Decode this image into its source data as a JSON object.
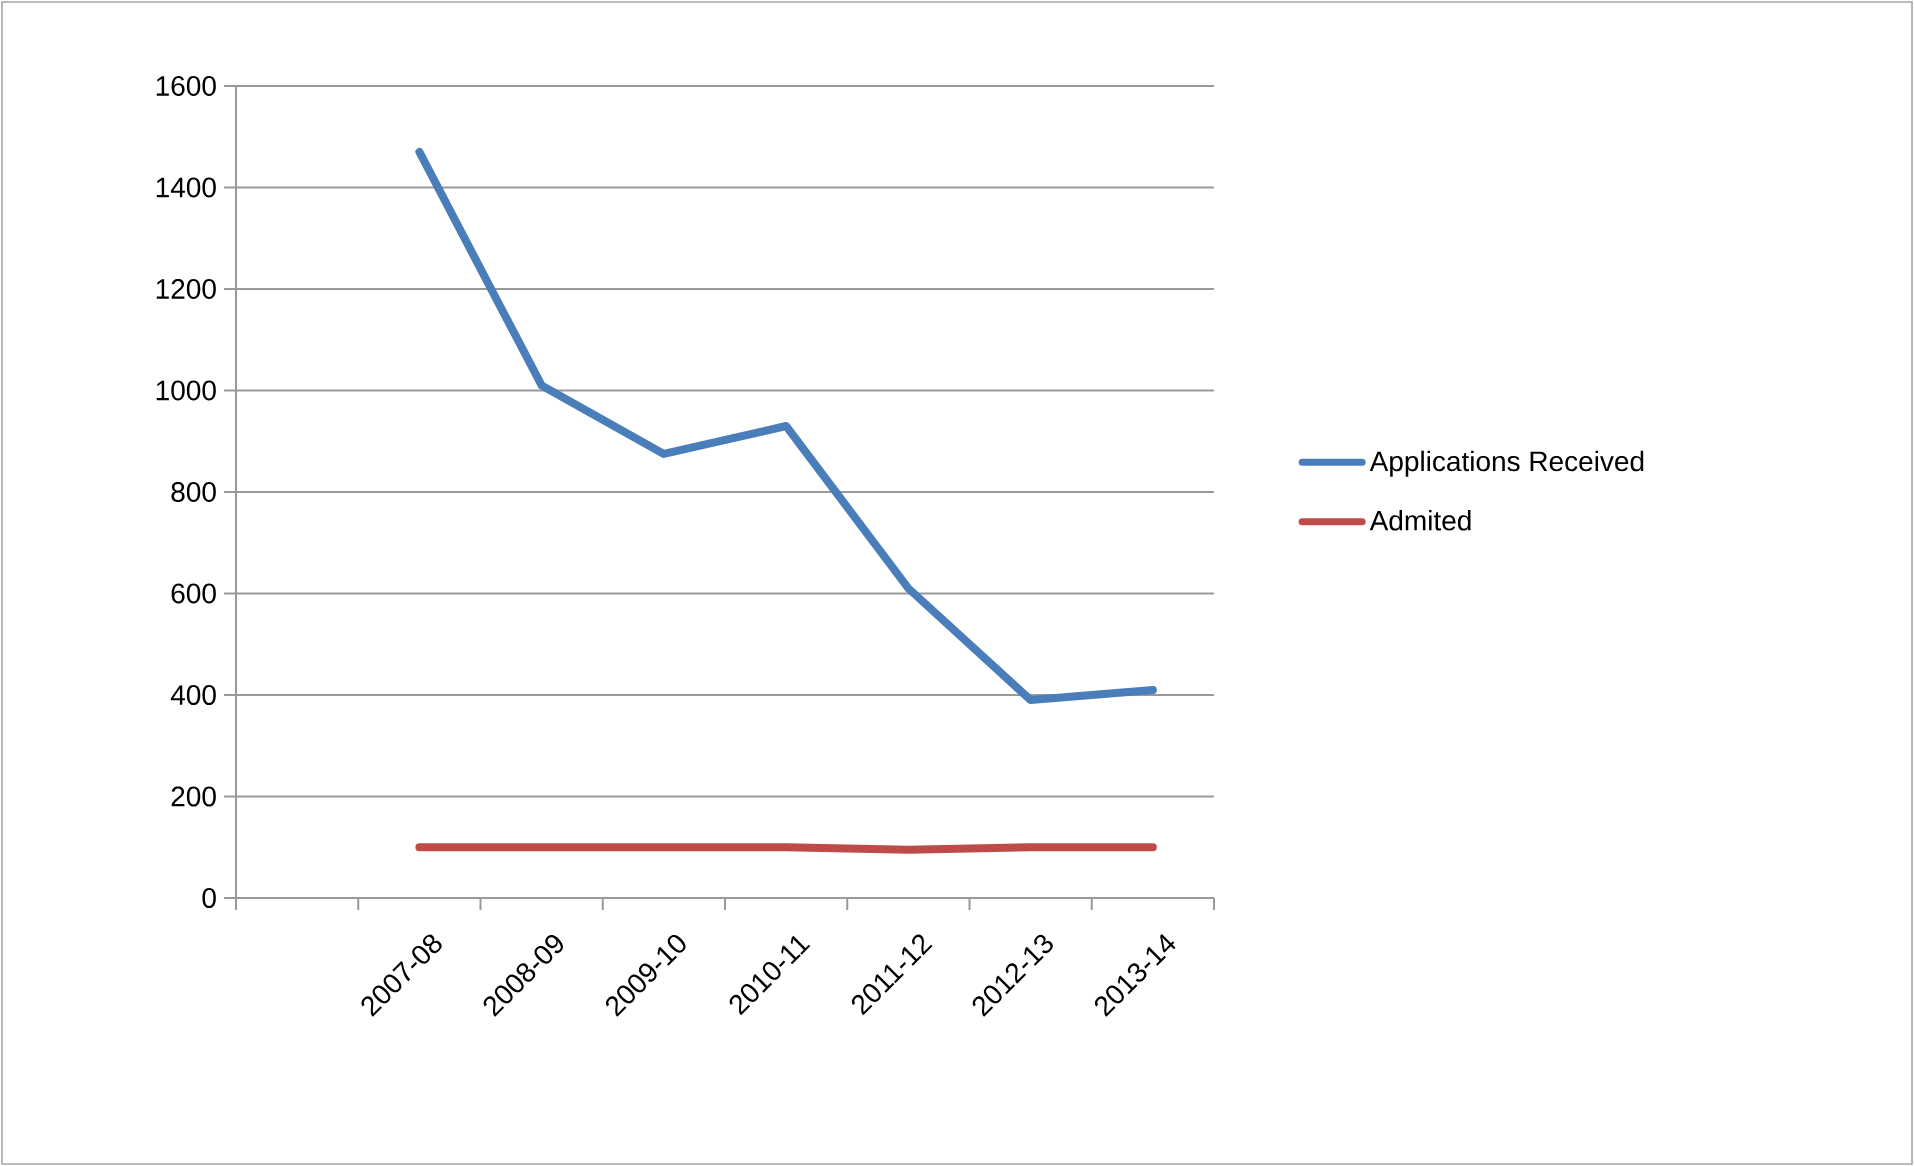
{
  "chart_data": {
    "type": "line",
    "categories": [
      null,
      "2007-08",
      "2008-09",
      "2009-10",
      "2010-11",
      "2011-12",
      "2012-13",
      "2013-14"
    ],
    "series": [
      {
        "name": "Applications Received",
        "color": "#4a7ebb",
        "values": [
          null,
          1470,
          1010,
          875,
          930,
          610,
          390,
          410
        ]
      },
      {
        "name": "Admited",
        "color": "#be4b48",
        "values": [
          null,
          100,
          100,
          100,
          100,
          95,
          100,
          100
        ]
      }
    ],
    "ylim": [
      0,
      1600
    ],
    "yticks": [
      0,
      200,
      400,
      600,
      800,
      1000,
      1200,
      1400,
      1600
    ],
    "grid": "y",
    "legend": "right",
    "marker": "none",
    "line_style": "solid"
  }
}
